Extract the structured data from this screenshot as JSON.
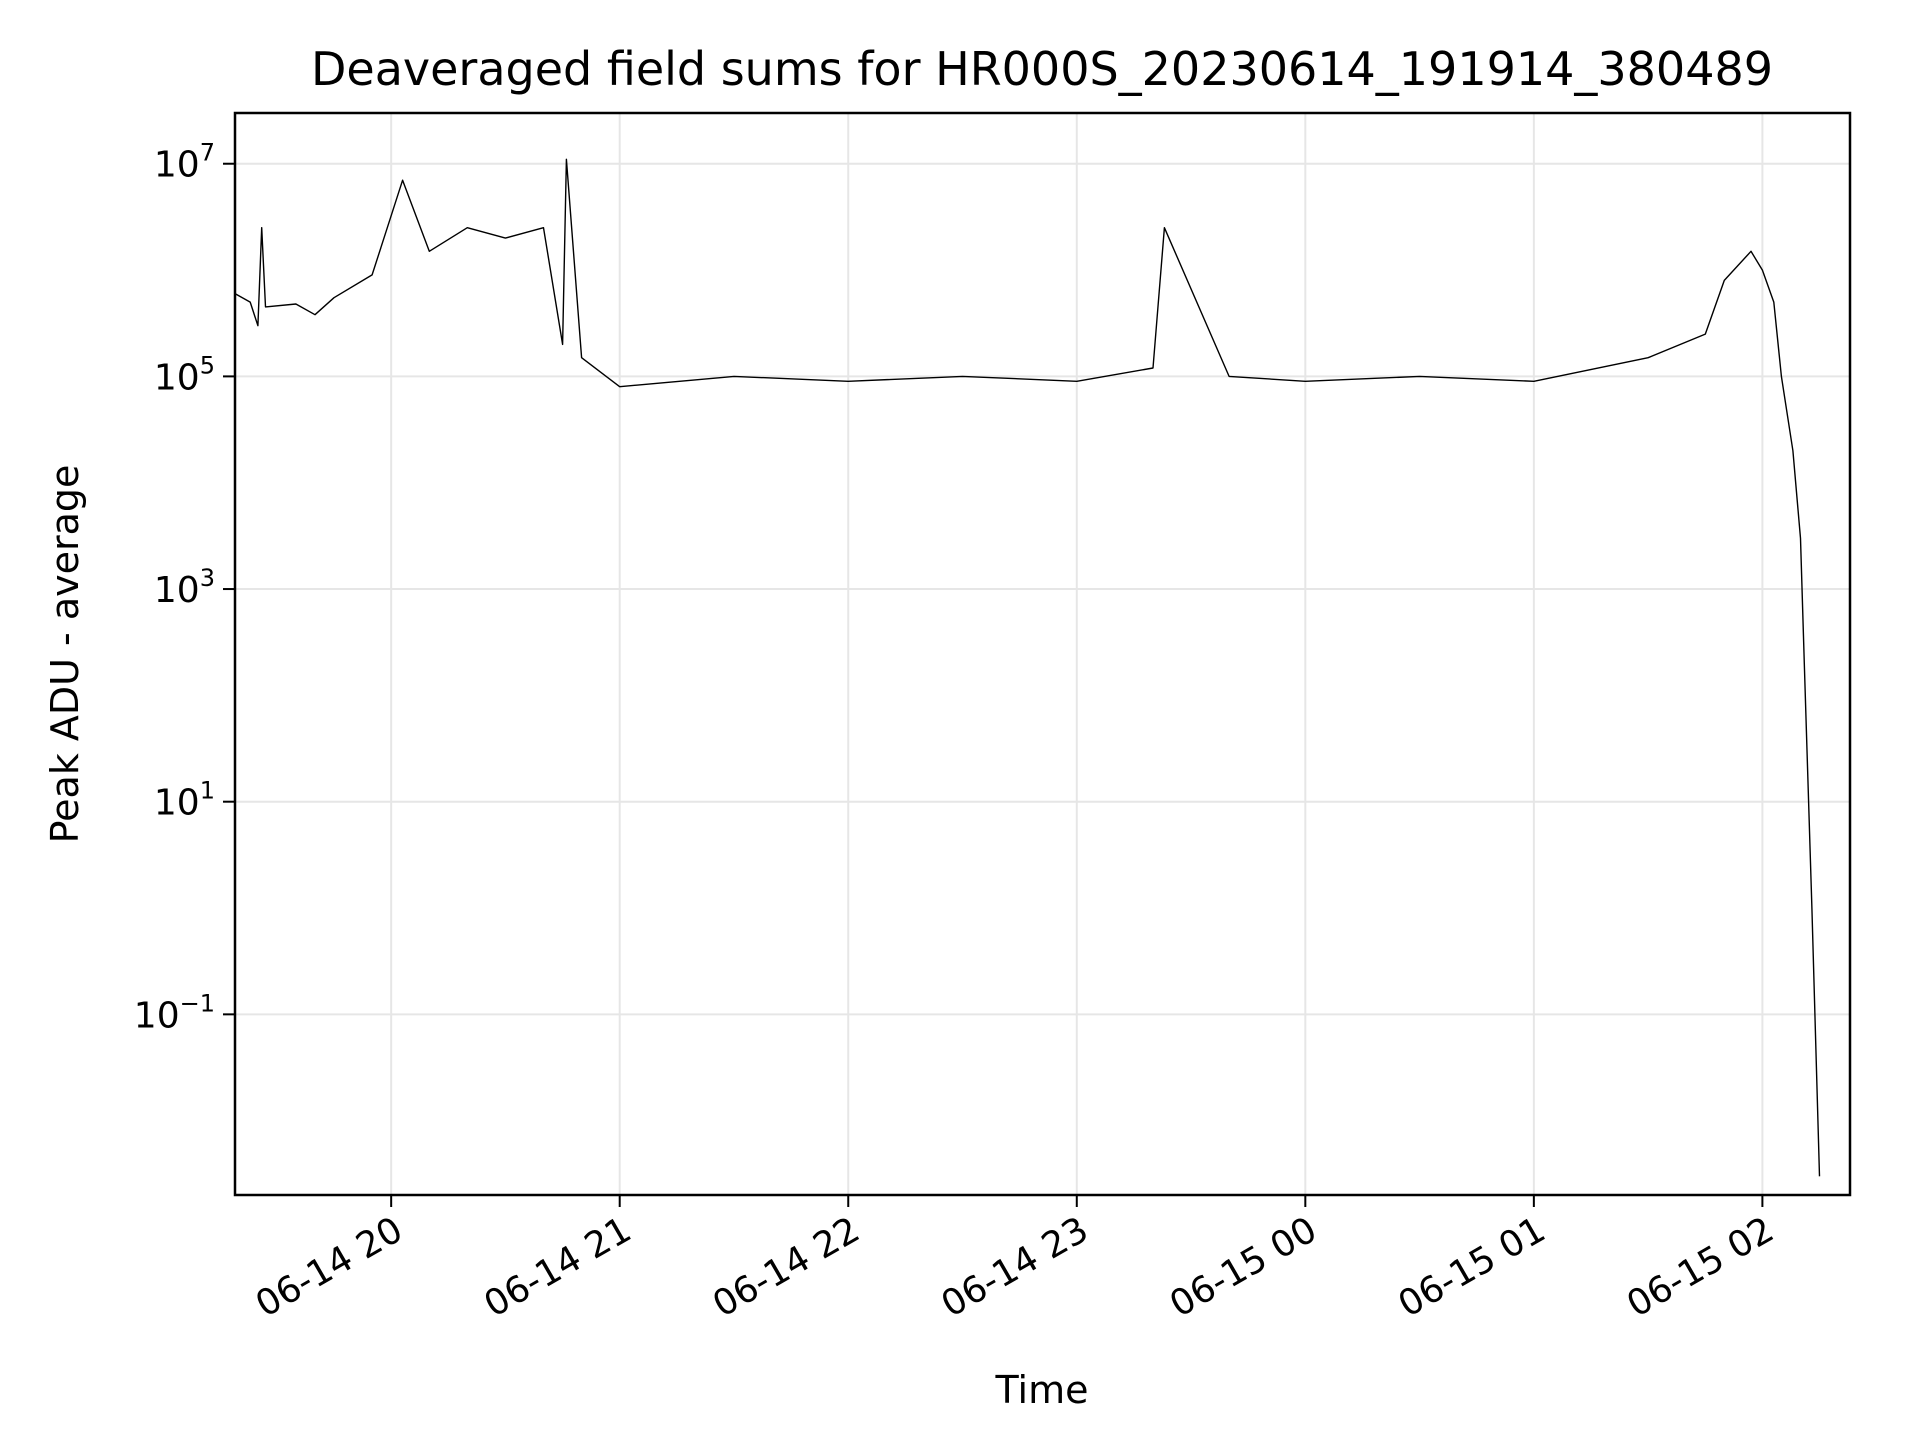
{
  "chart_data": {
    "type": "line",
    "title": "Deaveraged field sums for HR000S_20230614_191914_380489",
    "xlabel": "Time",
    "ylabel": "Peak ADU - average",
    "yscale": "log",
    "ylim": [
      0.002,
      30000000
    ],
    "xlim": [
      "2023-06-14 19:19",
      "2023-06-15 02:23"
    ],
    "grid": true,
    "x_ticks": [
      {
        "time": "2023-06-14 20:00",
        "label": "06-14 20"
      },
      {
        "time": "2023-06-14 21:00",
        "label": "06-14 21"
      },
      {
        "time": "2023-06-14 22:00",
        "label": "06-14 22"
      },
      {
        "time": "2023-06-14 23:00",
        "label": "06-14 23"
      },
      {
        "time": "2023-06-15 00:00",
        "label": "06-15 00"
      },
      {
        "time": "2023-06-15 01:00",
        "label": "06-15 01"
      },
      {
        "time": "2023-06-15 02:00",
        "label": "06-15 02"
      }
    ],
    "y_ticks": [
      {
        "value": 10000000,
        "base": "10",
        "exp": "7"
      },
      {
        "value": 100000,
        "base": "10",
        "exp": "5"
      },
      {
        "value": 1000,
        "base": "10",
        "exp": "3"
      },
      {
        "value": 10,
        "base": "10",
        "exp": "1"
      },
      {
        "value": 0.1,
        "base": "10",
        "exp": "−1"
      }
    ],
    "series": [
      {
        "color": "#000000",
        "points": [
          [
            "2023-06-14 19:19",
            600000
          ],
          [
            "2023-06-14 19:23",
            500000
          ],
          [
            "2023-06-14 19:25",
            300000
          ],
          [
            "2023-06-14 19:26",
            2500000
          ],
          [
            "2023-06-14 19:27",
            450000
          ],
          [
            "2023-06-14 19:35",
            480000
          ],
          [
            "2023-06-14 19:40",
            380000
          ],
          [
            "2023-06-14 19:45",
            550000
          ],
          [
            "2023-06-14 19:55",
            900000
          ],
          [
            "2023-06-14 20:03",
            7000000
          ],
          [
            "2023-06-14 20:10",
            1500000
          ],
          [
            "2023-06-14 20:20",
            2500000
          ],
          [
            "2023-06-14 20:30",
            2000000
          ],
          [
            "2023-06-14 20:40",
            2500000
          ],
          [
            "2023-06-14 20:45",
            200000
          ],
          [
            "2023-06-14 20:46",
            11000000
          ],
          [
            "2023-06-14 20:50",
            150000
          ],
          [
            "2023-06-14 21:00",
            80000
          ],
          [
            "2023-06-14 21:30",
            100000
          ],
          [
            "2023-06-14 22:00",
            90000
          ],
          [
            "2023-06-14 22:30",
            100000
          ],
          [
            "2023-06-14 23:00",
            90000
          ],
          [
            "2023-06-14 23:20",
            120000
          ],
          [
            "2023-06-14 23:23",
            2500000
          ],
          [
            "2023-06-14 23:40",
            100000
          ],
          [
            "2023-06-15 00:00",
            90000
          ],
          [
            "2023-06-15 00:30",
            100000
          ],
          [
            "2023-06-15 01:00",
            90000
          ],
          [
            "2023-06-15 01:30",
            150000
          ],
          [
            "2023-06-15 01:45",
            250000
          ],
          [
            "2023-06-15 01:50",
            800000
          ],
          [
            "2023-06-15 01:57",
            1500000
          ],
          [
            "2023-06-15 02:00",
            1000000
          ],
          [
            "2023-06-15 02:03",
            500000
          ],
          [
            "2023-06-15 02:05",
            100000
          ],
          [
            "2023-06-15 02:08",
            20000
          ],
          [
            "2023-06-15 02:10",
            3000
          ],
          [
            "2023-06-15 02:11",
            200
          ],
          [
            "2023-06-15 02:13",
            1
          ],
          [
            "2023-06-15 02:15",
            0.003
          ]
        ]
      }
    ]
  }
}
